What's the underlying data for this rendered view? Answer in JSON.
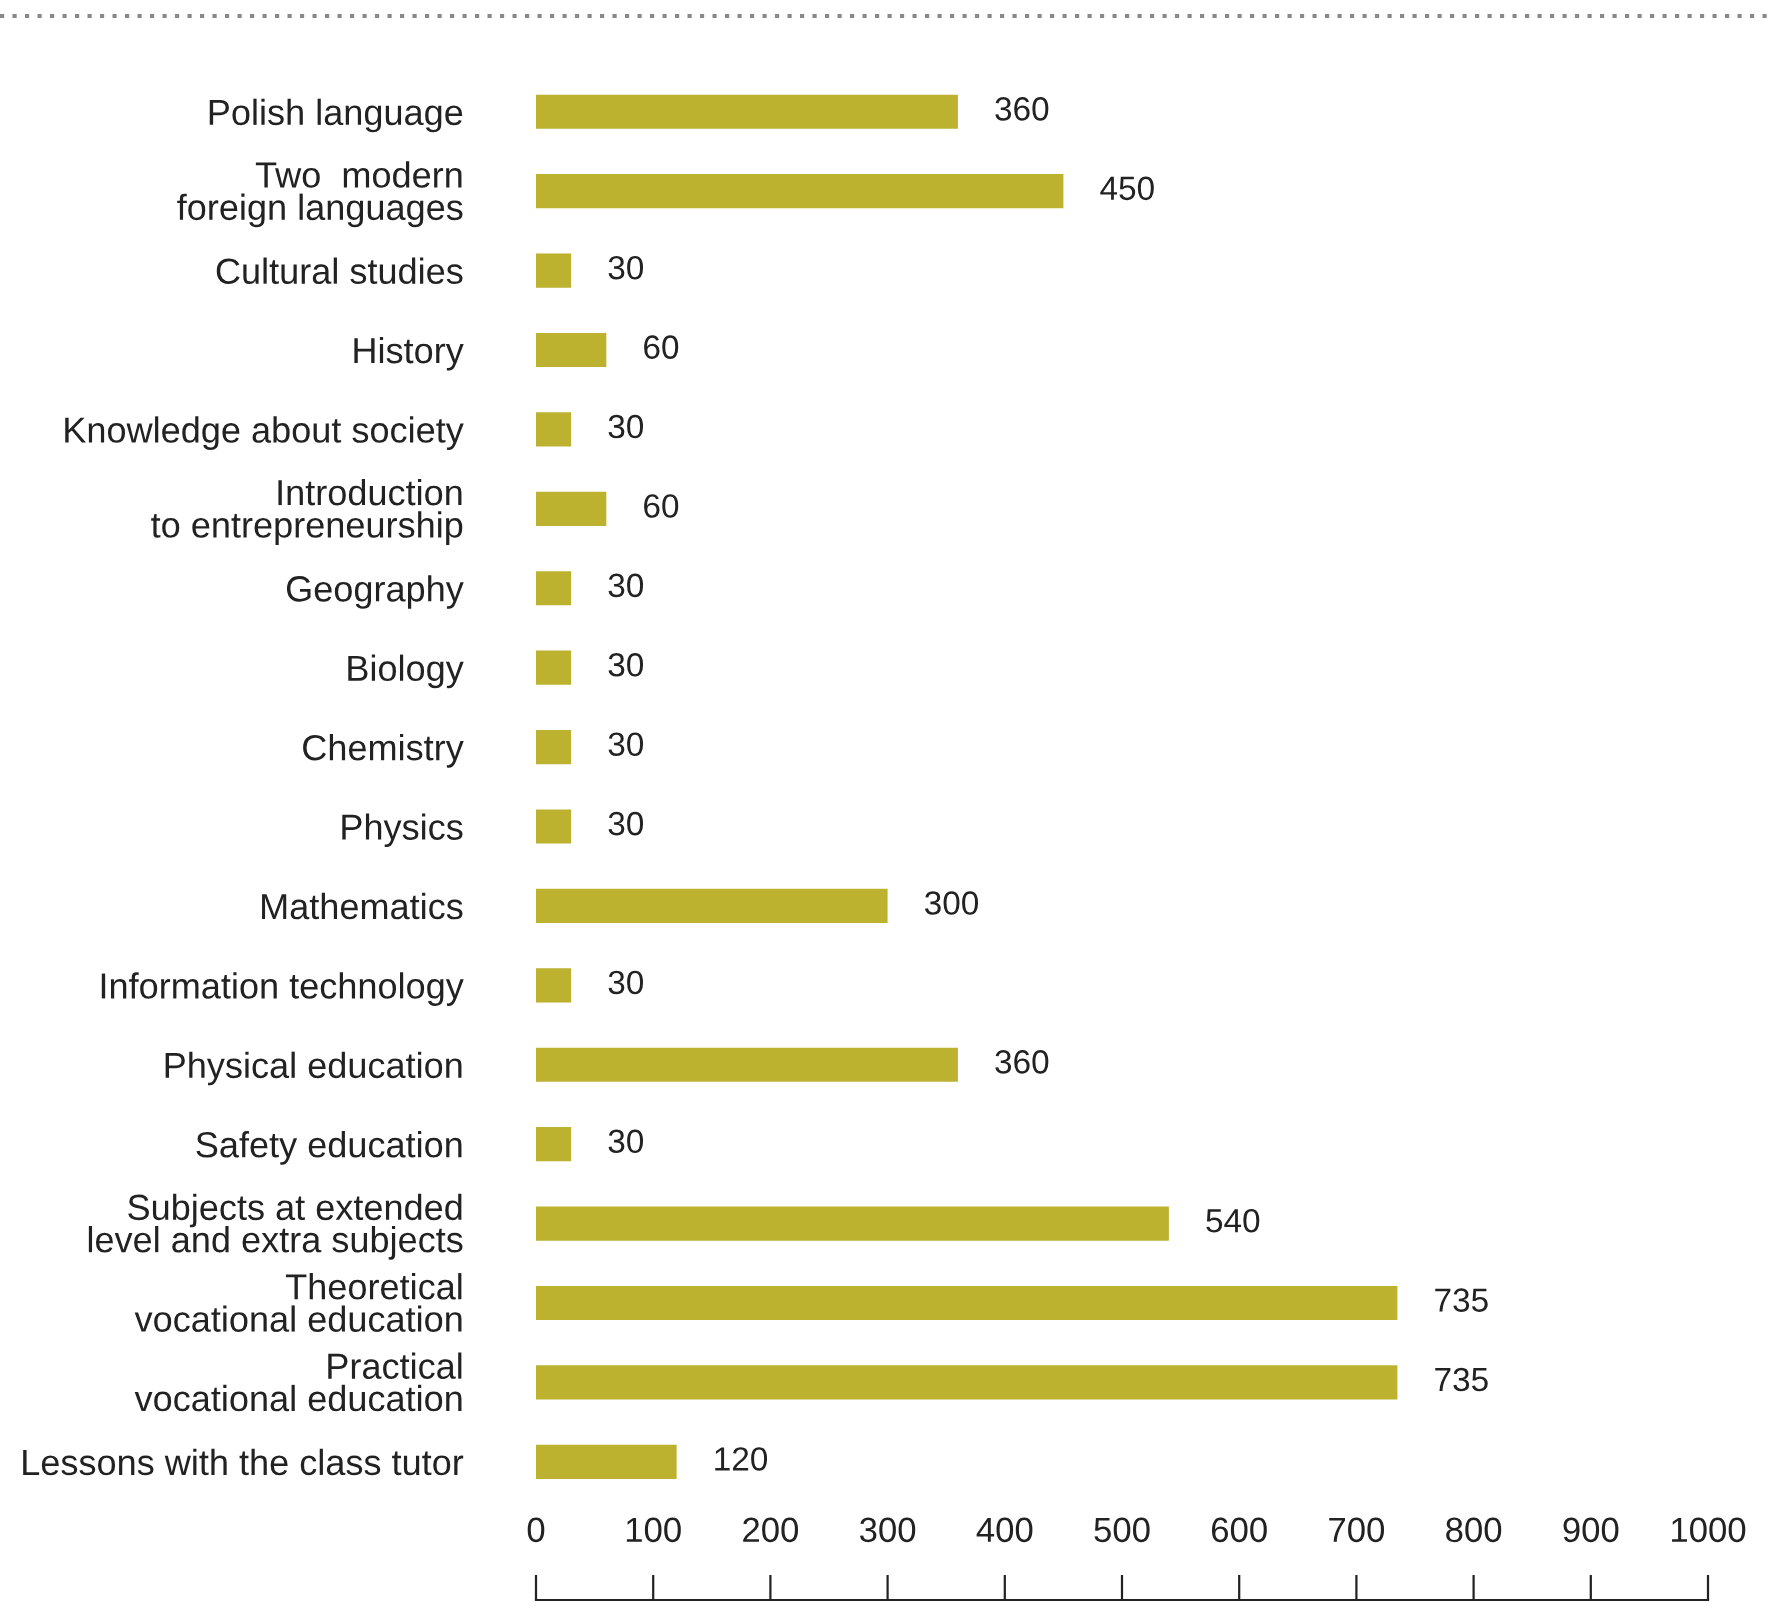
{
  "chart_data": {
    "type": "bar",
    "orientation": "horizontal",
    "categories": [
      "Polish language",
      "Two  modern\nforeign languages",
      "Cultural studies",
      "History",
      "Knowledge about society",
      "Introduction\nto entrepreneurship",
      "Geography",
      "Biology",
      "Chemistry",
      "Physics",
      "Mathematics",
      "Information technology",
      "Physical education",
      "Safety education",
      "Subjects at extended\nlevel and extra subjects",
      "Theoretical\nvocational education",
      "Practical\nvocational education",
      "Lessons with the class tutor"
    ],
    "values": [
      360,
      450,
      30,
      60,
      30,
      60,
      30,
      30,
      30,
      30,
      300,
      30,
      360,
      30,
      540,
      735,
      735,
      120
    ],
    "color": "#bdb230",
    "data_labels": true,
    "xlim": [
      0,
      1000
    ],
    "xticks": [
      0,
      100,
      200,
      300,
      400,
      500,
      600,
      700,
      800,
      900,
      1000
    ],
    "grid": false
  }
}
